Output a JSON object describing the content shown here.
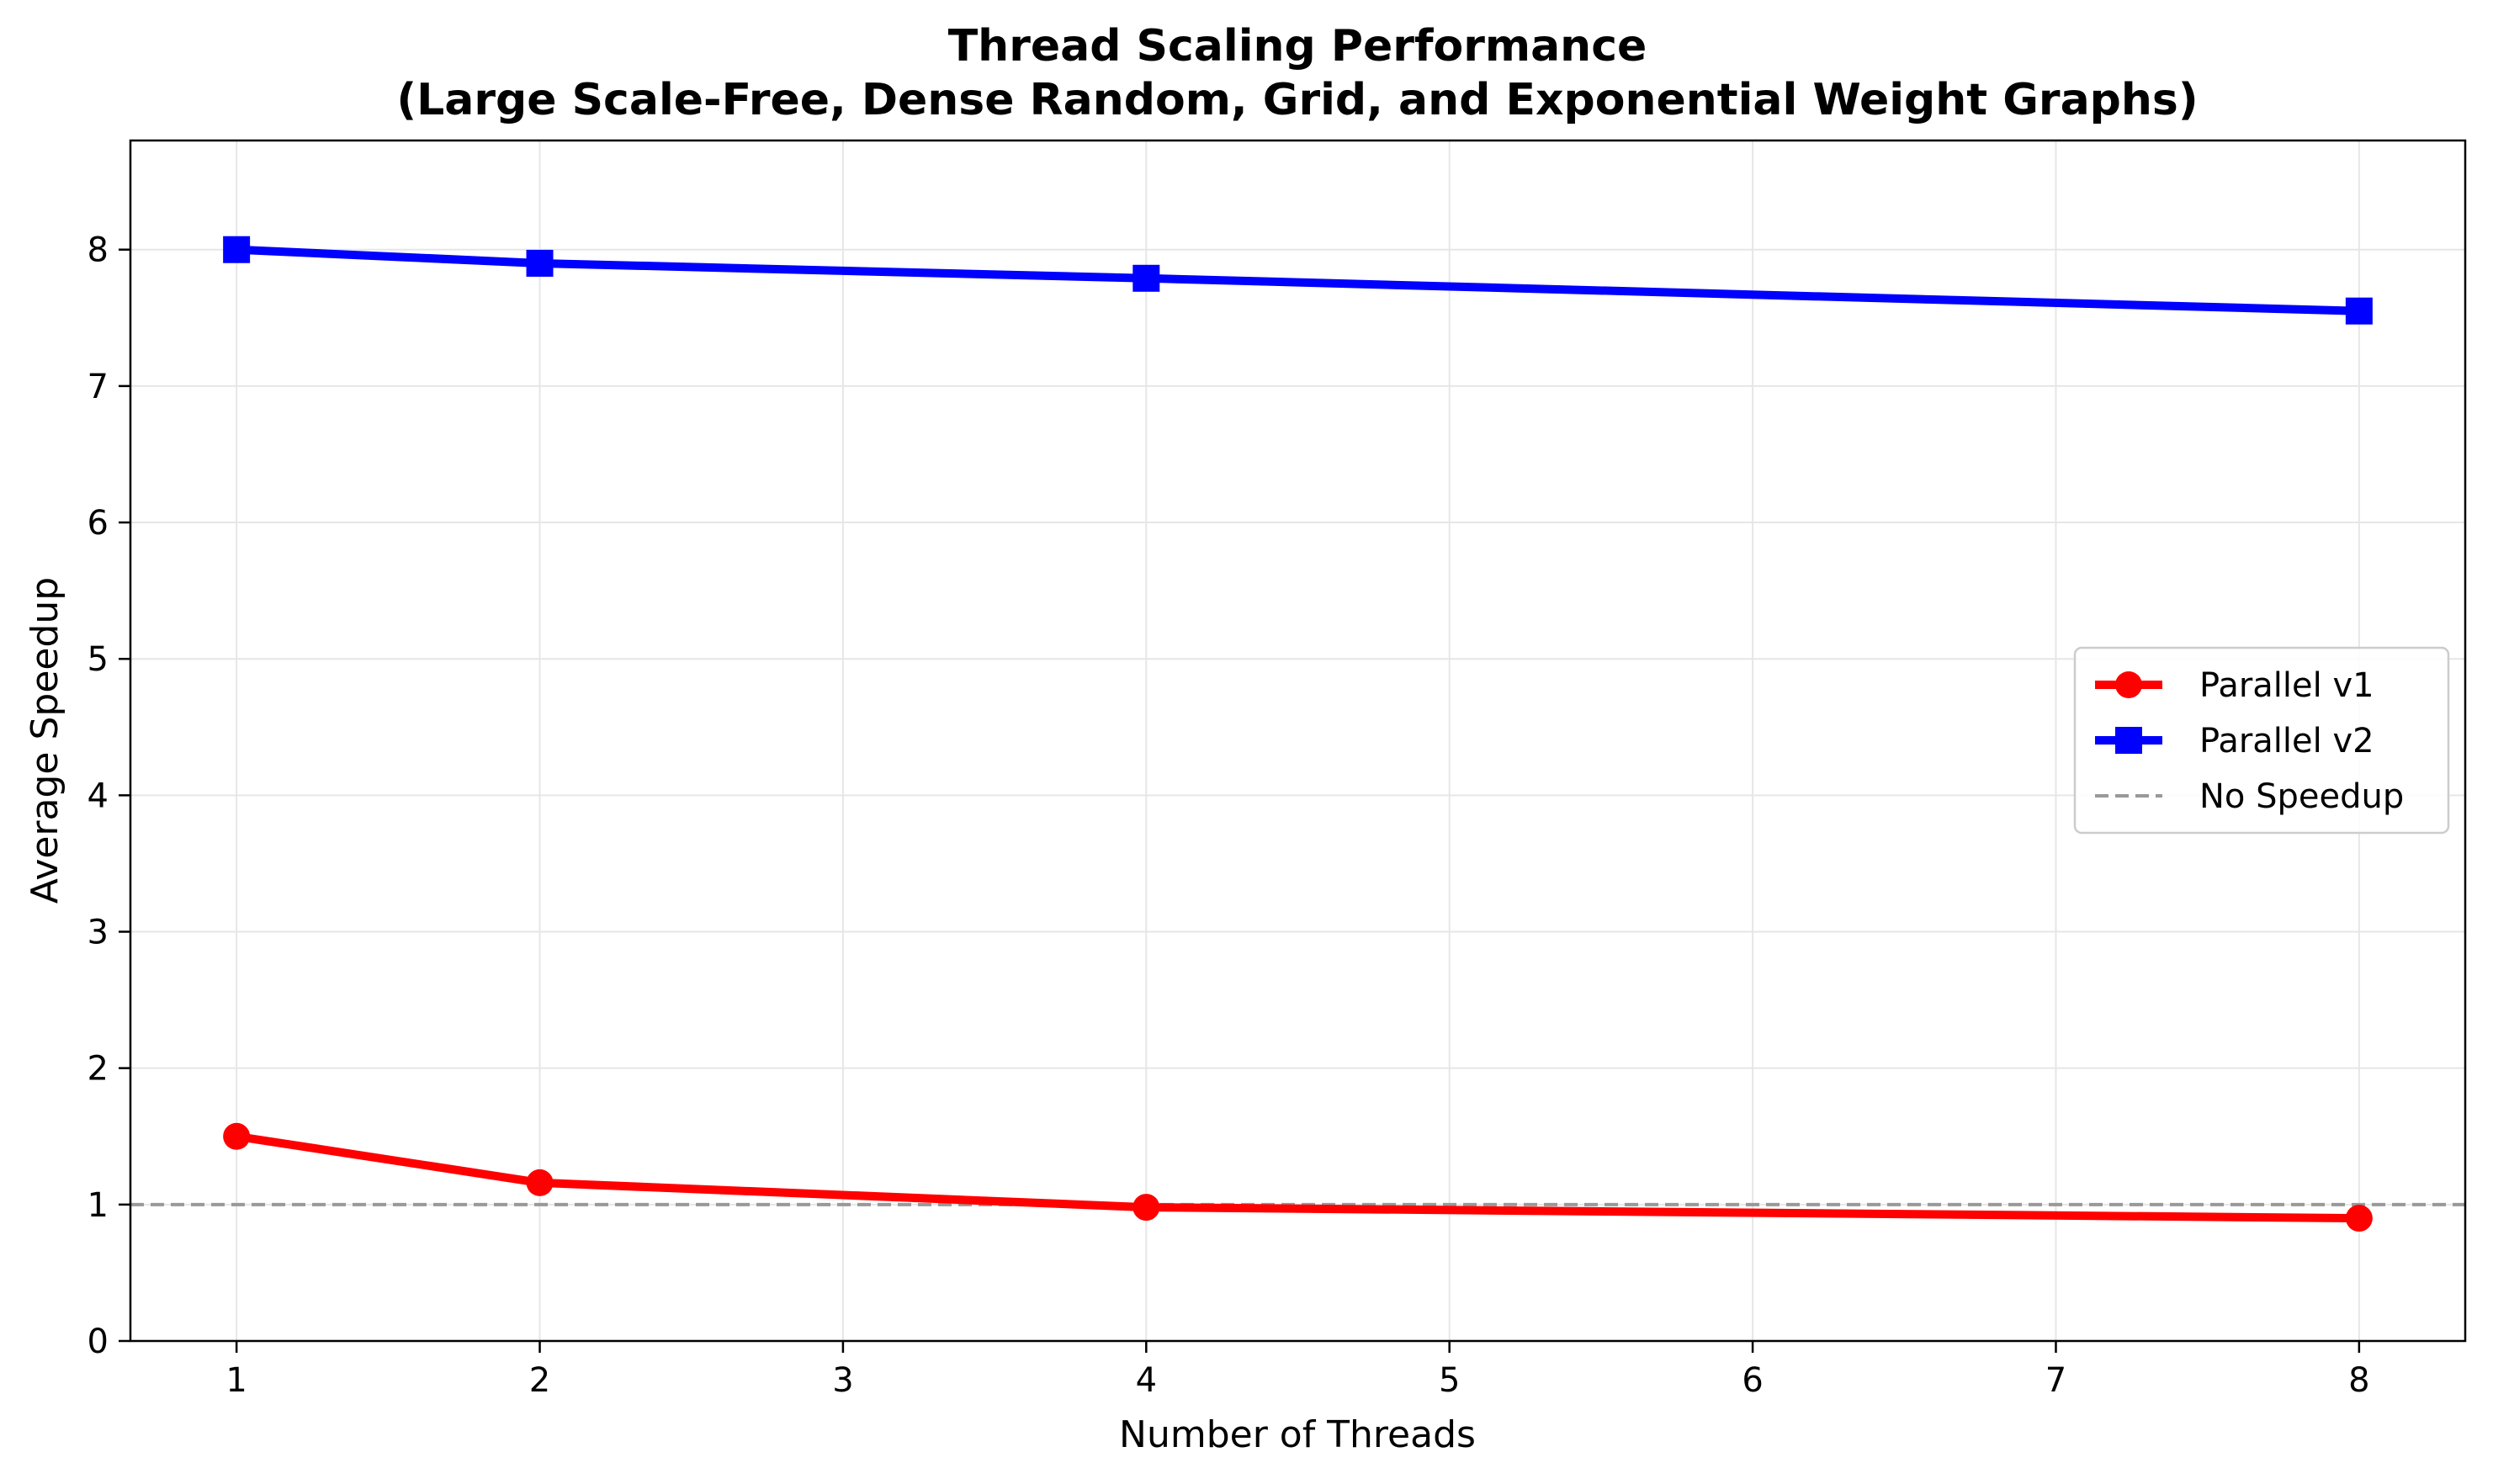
{
  "chart_data": {
    "type": "line",
    "title_lines": [
      "Thread Scaling Performance",
      "(Large Scale-Free, Dense Random, Grid, and Exponential Weight Graphs)"
    ],
    "xlabel": "Number of Threads",
    "ylabel": "Average Speedup",
    "xlim": [
      0.65,
      8.35
    ],
    "ylim": [
      0,
      8.8
    ],
    "xticks": [
      1,
      2,
      3,
      4,
      5,
      6,
      7,
      8
    ],
    "yticks": [
      0,
      1,
      2,
      3,
      4,
      5,
      6,
      7,
      8
    ],
    "grid": true,
    "legend_position": "center-right",
    "series": [
      {
        "name": "Parallel v1",
        "color": "#ff0000",
        "marker": "circle",
        "x": [
          1,
          2,
          4,
          8
        ],
        "values": [
          1.5,
          1.16,
          0.98,
          0.9
        ]
      },
      {
        "name": "Parallel v2",
        "color": "#0000ff",
        "marker": "square",
        "x": [
          1,
          2,
          4,
          8
        ],
        "values": [
          8.0,
          7.9,
          7.79,
          7.55
        ]
      }
    ],
    "reference_line": {
      "name": "No Speedup",
      "y": 1,
      "color": "#999999",
      "style": "dashed"
    }
  }
}
